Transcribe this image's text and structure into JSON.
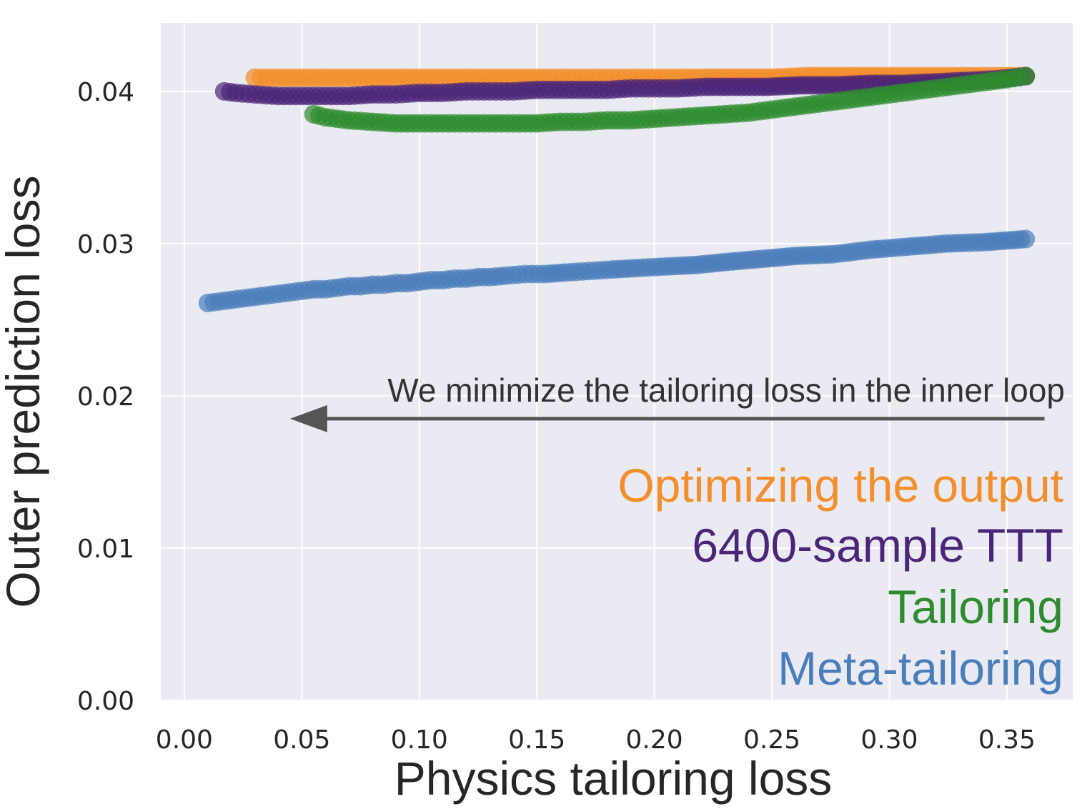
{
  "chart_data": {
    "type": "scatter",
    "title": "",
    "xlabel": "Physics tailoring loss",
    "ylabel": "Outer prediction loss",
    "xlim": [
      -0.01,
      0.378
    ],
    "ylim": [
      0.0,
      0.0445
    ],
    "grid": true,
    "x_ticks": [
      0.0,
      0.05,
      0.1,
      0.15,
      0.2,
      0.25,
      0.3,
      0.35
    ],
    "x_tick_labels": [
      "0.00",
      "0.05",
      "0.10",
      "0.15",
      "0.20",
      "0.25",
      "0.30",
      "0.35"
    ],
    "y_ticks": [
      0.0,
      0.01,
      0.02,
      0.03,
      0.04
    ],
    "y_tick_labels": [
      "0.00",
      "0.01",
      "0.02",
      "0.03",
      "0.04"
    ],
    "annotation": {
      "text": "We minimize the tailoring loss in the inner loop",
      "arrow_from": [
        0.366,
        0.0185
      ],
      "arrow_to": [
        0.045,
        0.0185
      ],
      "color": "#555555"
    },
    "legend_placement": "bottom-right",
    "series": [
      {
        "name": "Optimizing the output",
        "color": "#f28e2b",
        "points": [
          [
            0.03,
            0.0409
          ],
          [
            0.04,
            0.0409
          ],
          [
            0.05,
            0.0409
          ],
          [
            0.06,
            0.0409
          ],
          [
            0.07,
            0.0409
          ],
          [
            0.08,
            0.0409
          ],
          [
            0.09,
            0.0409
          ],
          [
            0.1,
            0.0409
          ],
          [
            0.11,
            0.0409
          ],
          [
            0.12,
            0.0409
          ],
          [
            0.13,
            0.0409
          ],
          [
            0.14,
            0.0409
          ],
          [
            0.15,
            0.0409
          ],
          [
            0.158,
            0.0409
          ],
          [
            0.166,
            0.0409
          ],
          [
            0.174,
            0.0409
          ],
          [
            0.182,
            0.0409
          ],
          [
            0.19,
            0.0409
          ],
          [
            0.2,
            0.0409
          ],
          [
            0.21,
            0.0409
          ],
          [
            0.222,
            0.0409
          ],
          [
            0.235,
            0.0409
          ],
          [
            0.25,
            0.0409
          ],
          [
            0.265,
            0.041
          ],
          [
            0.28,
            0.041
          ],
          [
            0.295,
            0.041
          ],
          [
            0.32,
            0.041
          ],
          [
            0.34,
            0.041
          ],
          [
            0.358,
            0.041
          ]
        ]
      },
      {
        "name": "6400-sample TTT",
        "color": "#4b2577",
        "points": [
          [
            0.017,
            0.04
          ],
          [
            0.022,
            0.0399
          ],
          [
            0.03,
            0.0398
          ],
          [
            0.04,
            0.0397
          ],
          [
            0.05,
            0.0397
          ],
          [
            0.06,
            0.0397
          ],
          [
            0.07,
            0.0397
          ],
          [
            0.08,
            0.0398
          ],
          [
            0.09,
            0.0398
          ],
          [
            0.1,
            0.0399
          ],
          [
            0.11,
            0.0399
          ],
          [
            0.12,
            0.04
          ],
          [
            0.13,
            0.04
          ],
          [
            0.14,
            0.04
          ],
          [
            0.15,
            0.0401
          ],
          [
            0.16,
            0.0401
          ],
          [
            0.17,
            0.0401
          ],
          [
            0.18,
            0.0401
          ],
          [
            0.19,
            0.0402
          ],
          [
            0.2,
            0.0402
          ],
          [
            0.21,
            0.0402
          ],
          [
            0.222,
            0.0403
          ],
          [
            0.235,
            0.0403
          ],
          [
            0.248,
            0.0403
          ],
          [
            0.263,
            0.0404
          ],
          [
            0.278,
            0.0404
          ],
          [
            0.292,
            0.0405
          ],
          [
            0.306,
            0.0405
          ],
          [
            0.32,
            0.0406
          ],
          [
            0.334,
            0.0407
          ],
          [
            0.346,
            0.0408
          ],
          [
            0.358,
            0.041
          ]
        ]
      },
      {
        "name": "Tailoring",
        "color": "#2e8b2e",
        "points": [
          [
            0.055,
            0.0385
          ],
          [
            0.06,
            0.0383
          ],
          [
            0.07,
            0.0381
          ],
          [
            0.08,
            0.038
          ],
          [
            0.09,
            0.0379
          ],
          [
            0.1,
            0.0379
          ],
          [
            0.11,
            0.0379
          ],
          [
            0.12,
            0.0379
          ],
          [
            0.13,
            0.0379
          ],
          [
            0.14,
            0.0379
          ],
          [
            0.15,
            0.0379
          ],
          [
            0.16,
            0.038
          ],
          [
            0.17,
            0.038
          ],
          [
            0.18,
            0.0381
          ],
          [
            0.19,
            0.0381
          ],
          [
            0.2,
            0.0382
          ],
          [
            0.21,
            0.0383
          ],
          [
            0.22,
            0.0384
          ],
          [
            0.23,
            0.0385
          ],
          [
            0.24,
            0.0386
          ],
          [
            0.25,
            0.0388
          ],
          [
            0.26,
            0.039
          ],
          [
            0.27,
            0.0392
          ],
          [
            0.28,
            0.0394
          ],
          [
            0.29,
            0.0396
          ],
          [
            0.3,
            0.0398
          ],
          [
            0.31,
            0.04
          ],
          [
            0.32,
            0.0402
          ],
          [
            0.33,
            0.0404
          ],
          [
            0.34,
            0.0406
          ],
          [
            0.35,
            0.0408
          ],
          [
            0.358,
            0.041
          ]
        ]
      },
      {
        "name": "Meta-tailoring",
        "color": "#4a7ebb",
        "points": [
          [
            0.01,
            0.0261
          ],
          [
            0.015,
            0.0262
          ],
          [
            0.02,
            0.0263
          ],
          [
            0.025,
            0.0264
          ],
          [
            0.03,
            0.0265
          ],
          [
            0.035,
            0.0266
          ],
          [
            0.04,
            0.0267
          ],
          [
            0.045,
            0.0268
          ],
          [
            0.05,
            0.0269
          ],
          [
            0.055,
            0.027
          ],
          [
            0.06,
            0.027
          ],
          [
            0.065,
            0.0271
          ],
          [
            0.07,
            0.0272
          ],
          [
            0.075,
            0.0272
          ],
          [
            0.08,
            0.0273
          ],
          [
            0.085,
            0.0273
          ],
          [
            0.09,
            0.0274
          ],
          [
            0.095,
            0.0274
          ],
          [
            0.1,
            0.0275
          ],
          [
            0.105,
            0.0276
          ],
          [
            0.11,
            0.0276
          ],
          [
            0.115,
            0.0277
          ],
          [
            0.12,
            0.0277
          ],
          [
            0.125,
            0.0278
          ],
          [
            0.13,
            0.0278
          ],
          [
            0.137,
            0.0279
          ],
          [
            0.145,
            0.028
          ],
          [
            0.153,
            0.028
          ],
          [
            0.162,
            0.0281
          ],
          [
            0.172,
            0.0282
          ],
          [
            0.182,
            0.0283
          ],
          [
            0.193,
            0.0284
          ],
          [
            0.205,
            0.0285
          ],
          [
            0.218,
            0.0286
          ],
          [
            0.231,
            0.0288
          ],
          [
            0.246,
            0.029
          ],
          [
            0.261,
            0.0292
          ],
          [
            0.276,
            0.0293
          ],
          [
            0.292,
            0.0296
          ],
          [
            0.308,
            0.0298
          ],
          [
            0.324,
            0.03
          ],
          [
            0.341,
            0.0301
          ],
          [
            0.358,
            0.0303
          ]
        ]
      }
    ]
  }
}
